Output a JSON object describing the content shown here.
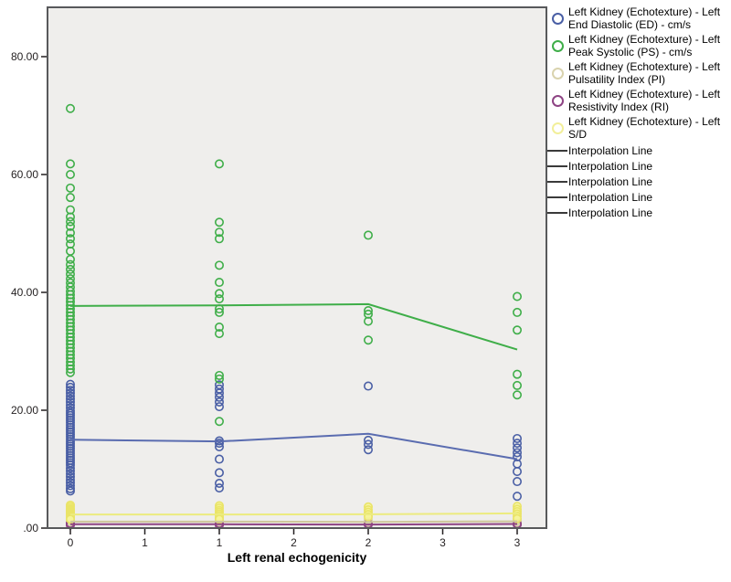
{
  "figure": {
    "background": "#ffffff",
    "plot_background": "#efeeec",
    "frame_color": "#58595b",
    "x_axis_title": "Left renal echogenicity"
  },
  "legend": {
    "items": [
      {
        "type": "circle",
        "color": "#4a5fa5",
        "label": "Left Kidney (Echotexture) - Left End Diastolic (ED) - cm/s"
      },
      {
        "type": "circle",
        "color": "#3fae49",
        "label": "Left Kidney (Echotexture) - Left Peak Systolic (PS) - cm/s"
      },
      {
        "type": "circle",
        "color": "#d9d3ae",
        "label": "Left Kidney (Echotexture) - Left Pulsatility Index (PI)"
      },
      {
        "type": "circle",
        "color": "#8e4484",
        "label": "Left Kidney (Echotexture) - Left Resistivity Index (RI)"
      },
      {
        "type": "circle",
        "color": "#f2ef9a",
        "label": "Left Kidney (Echotexture) - Left S/D"
      },
      {
        "type": "line",
        "color": "#3a3a3a",
        "label": "Interpolation Line"
      },
      {
        "type": "line",
        "color": "#3a3a3a",
        "label": "Interpolation Line"
      },
      {
        "type": "line",
        "color": "#3a3a3a",
        "label": "Interpolation Line"
      },
      {
        "type": "line",
        "color": "#3a3a3a",
        "label": "Interpolation Line"
      },
      {
        "type": "line",
        "color": "#3a3a3a",
        "label": "Interpolation Line"
      }
    ]
  },
  "chart_data": {
    "type": "scatter",
    "title": "",
    "xlabel": "Left renal echogenicity",
    "ylabel": "",
    "xlim": [
      -0.16,
      3.2
    ],
    "ylim": [
      0,
      88.4
    ],
    "grid": false,
    "legend_position": "right",
    "x_ticks": [
      {
        "pos": 0,
        "label": "0"
      },
      {
        "pos": 0.5,
        "label": "1"
      },
      {
        "pos": 1,
        "label": "1"
      },
      {
        "pos": 1.5,
        "label": "2"
      },
      {
        "pos": 2,
        "label": "2"
      },
      {
        "pos": 2.5,
        "label": "3"
      },
      {
        "pos": 3,
        "label": "3"
      }
    ],
    "y_ticks": [
      {
        "pos": 0,
        "label": ".00"
      },
      {
        "pos": 20,
        "label": "20.00"
      },
      {
        "pos": 40,
        "label": "40.00"
      },
      {
        "pos": 60,
        "label": "60.00"
      },
      {
        "pos": 80,
        "label": "80.00"
      }
    ],
    "series": [
      {
        "name": "Left Kidney (Echotexture) - Left Pulsatility Index (PI)",
        "marker": "circle",
        "color": "#d9d3ae",
        "fill": "none",
        "points_by_x": {
          "0": [
            1.6,
            1.4,
            1.25,
            1.1,
            1.0,
            0.9,
            0.8
          ],
          "1": [
            1.5,
            1.3,
            1.1,
            0.95,
            0.8
          ],
          "2": [
            1.4,
            1.15,
            0.9
          ],
          "3": [
            1.45,
            1.2,
            0.95
          ]
        }
      },
      {
        "name": "Left Kidney (Echotexture) - Left Resistivity Index (RI)",
        "marker": "circle",
        "color": "#8e4484",
        "fill": "none",
        "points_by_x": {
          "0": [
            0.8,
            0.74,
            0.69,
            0.64,
            0.59,
            0.55
          ],
          "1": [
            0.78,
            0.71,
            0.65,
            0.59,
            0.55
          ],
          "2": [
            0.74,
            0.67,
            0.6
          ],
          "3": [
            0.75,
            0.68,
            0.6
          ]
        }
      },
      {
        "name": "Left Kidney (Echotexture) - Left S/D",
        "marker": "circle",
        "color": "#eae467",
        "fill": "#f6f49b",
        "points_by_x": {
          "0": [
            3.9,
            3.6,
            3.3,
            3.1,
            2.9,
            2.7,
            2.5,
            2.3,
            2.1,
            1.9,
            1.7,
            1.5
          ],
          "1": [
            3.8,
            3.4,
            3.0,
            2.7,
            2.4,
            2.1,
            1.8,
            1.5
          ],
          "2": [
            3.6,
            3.1,
            2.7,
            2.3,
            1.9
          ],
          "3": [
            3.7,
            3.2,
            2.8,
            2.4,
            2.0,
            1.6
          ]
        }
      },
      {
        "name": "Left Kidney (Echotexture) - Left End Diastolic (ED) - cm/s",
        "marker": "circle",
        "color": "#4a5fa5",
        "fill": "none",
        "points_by_x": {
          "0": [
            24.4,
            23.9,
            23.4,
            22.9,
            22.4,
            21.9,
            21.4,
            20.9,
            20.4,
            19.9,
            19.5,
            19.1,
            18.7,
            18.3,
            17.9,
            17.5,
            17.1,
            16.7,
            16.3,
            15.9,
            15.5,
            15.1,
            14.7,
            14.3,
            13.9,
            13.5,
            13.1,
            12.7,
            12.3,
            11.9,
            11.5,
            11.1,
            10.7,
            10.2,
            9.7,
            9.2,
            8.7,
            8.2,
            7.7,
            7.2,
            6.7,
            6.3
          ],
          "1": [
            24.3,
            23.6,
            22.9,
            22.2,
            21.4,
            20.6,
            14.8,
            14.4,
            13.8,
            11.7,
            9.4,
            7.6,
            6.8
          ],
          "2": [
            24.1,
            14.9,
            14.2,
            13.3
          ],
          "3": [
            15.2,
            14.4,
            13.6,
            12.8,
            12.1,
            10.9,
            9.6,
            7.9,
            5.4
          ]
        }
      },
      {
        "name": "Left Kidney (Echotexture) - Left Peak Systolic (PS) - cm/s",
        "marker": "circle",
        "color": "#3fae49",
        "fill": "none",
        "points_by_x": {
          "0": [
            71.2,
            61.8,
            60.0,
            57.7,
            56.1,
            54.0,
            52.8,
            52.0,
            51.2,
            50.1,
            49.1,
            48.2,
            47.0,
            45.6,
            44.7,
            43.9,
            43.1,
            42.3,
            41.6,
            40.9,
            40.2,
            39.6,
            39.0,
            38.4,
            37.8,
            37.2,
            36.6,
            36.0,
            35.4,
            34.8,
            34.2,
            33.6,
            33.0,
            32.4,
            31.8,
            31.2,
            30.6,
            30.0,
            29.4,
            28.8,
            28.2,
            27.6,
            27.0,
            26.4
          ],
          "1": [
            61.8,
            51.9,
            50.2,
            49.1,
            44.6,
            41.7,
            39.8,
            38.9,
            37.2,
            36.6,
            34.1,
            33.0,
            25.9,
            25.3,
            18.1
          ],
          "2": [
            49.7,
            36.9,
            36.3,
            35.1,
            31.9
          ],
          "3": [
            39.3,
            36.6,
            33.6,
            26.1,
            24.2,
            22.6
          ]
        }
      }
    ],
    "interpolation_lines": [
      {
        "series": "Left Kidney (Echotexture) - Left Pulsatility Index (PI)",
        "color": "#cfc89c",
        "x": [
          0,
          1,
          2,
          3
        ],
        "y": [
          1.1,
          1.1,
          1.05,
          1.15
        ]
      },
      {
        "series": "Left Kidney (Echotexture) - Left S/D",
        "color": "#eceb7f",
        "x": [
          0,
          1,
          2,
          3
        ],
        "y": [
          2.3,
          2.3,
          2.35,
          2.5
        ]
      },
      {
        "series": "Left Kidney (Echotexture) - Left Resistivity Index (RI)",
        "color": "#8e4484",
        "x": [
          0,
          1,
          2,
          3
        ],
        "y": [
          0.65,
          0.65,
          0.6,
          0.7
        ]
      },
      {
        "series": "Left Kidney (Echotexture) - Left End Diastolic (ED) - cm/s",
        "color": "#5a6cb0",
        "x": [
          0,
          1,
          2,
          3
        ],
        "y": [
          15.0,
          14.7,
          16.0,
          11.7
        ]
      },
      {
        "series": "Left Kidney (Echotexture) - Left Peak Systolic (PS) - cm/s",
        "color": "#3fae49",
        "x": [
          0,
          1,
          2,
          3
        ],
        "y": [
          37.7,
          37.8,
          38.0,
          30.3
        ]
      }
    ]
  }
}
